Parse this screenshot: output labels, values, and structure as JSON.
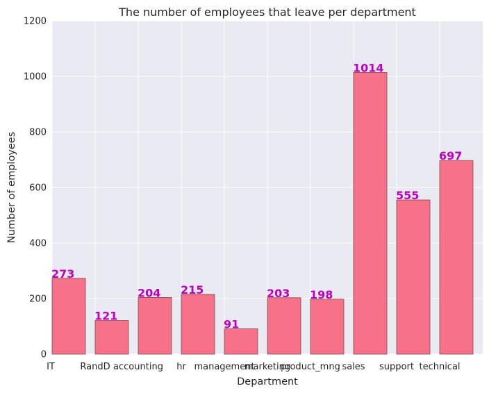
{
  "chart_data": {
    "type": "bar",
    "title": "The number of employees that leave per department",
    "xlabel": "Department",
    "ylabel": "Number of employees",
    "categories": [
      "IT",
      "RandD",
      "accounting",
      "hr",
      "management",
      "marketing",
      "product_mng",
      "sales",
      "support",
      "technical"
    ],
    "values": [
      273,
      121,
      204,
      215,
      91,
      203,
      198,
      1014,
      555,
      697
    ],
    "ylim": [
      0,
      1200
    ],
    "yticks": [
      0,
      200,
      400,
      600,
      800,
      1000,
      1200
    ],
    "grid": true,
    "colors": {
      "bar": "#f77189",
      "bar_edge": "#7a4a52",
      "data_label": "#c000c0",
      "plot_background": "#eaeaf2",
      "grid": "#ffffff"
    }
  }
}
